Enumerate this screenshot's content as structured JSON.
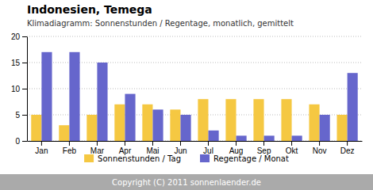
{
  "chart_data": {
    "type": "bar",
    "title": "Indonesien, Temega",
    "subtitle": "Klimadiagramm: Sonnenstunden / Regentage, monatlich, gemittelt",
    "categories": [
      "Jan",
      "Feb",
      "Mar",
      "Apr",
      "Mai",
      "Jun",
      "Jul",
      "Aug",
      "Sep",
      "Okt",
      "Nov",
      "Dez"
    ],
    "series": [
      {
        "name": "Sonnenstunden / Tag",
        "color": "#F5C842",
        "values": [
          5,
          3,
          5,
          7,
          7,
          6,
          8,
          8,
          8,
          8,
          7,
          5
        ]
      },
      {
        "name": "Regentage / Monat",
        "color": "#6666CC",
        "values": [
          17,
          17,
          15,
          9,
          6,
          5,
          2,
          1,
          1,
          1,
          5,
          13
        ]
      }
    ],
    "ylim": [
      0,
      20
    ],
    "yticks": [
      0,
      5,
      10,
      15,
      20
    ],
    "grid": true,
    "legend": "bottom",
    "annotations": [
      "Copyright (C) 2011 sonnenlaender.de"
    ]
  }
}
